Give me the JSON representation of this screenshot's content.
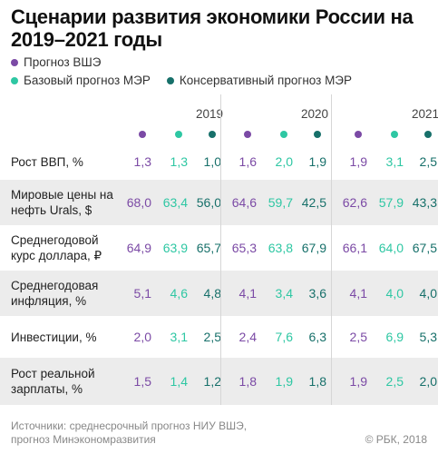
{
  "title": "Сценарии развития экономики России на 2019–2021 годы",
  "colors": {
    "vshe": "#7b4aa5",
    "base": "#2ec7a3",
    "cons": "#17706a"
  },
  "legend": [
    {
      "key": "vshe",
      "label": "Прогноз ВШЭ"
    },
    {
      "key": "base",
      "label": "Базовый прогноз МЭР"
    },
    {
      "key": "cons",
      "label": "Консервативный прогноз МЭР"
    }
  ],
  "chart_data": {
    "type": "table",
    "years": [
      "2019",
      "2020",
      "2021"
    ],
    "series": [
      "vshe",
      "base",
      "cons"
    ],
    "rows": [
      {
        "label": "Рост ВВП, %",
        "values": [
          [
            "1,3",
            "1,3",
            "1,0"
          ],
          [
            "1,6",
            "2,0",
            "1,9"
          ],
          [
            "1,9",
            "3,1",
            "2,5"
          ]
        ]
      },
      {
        "label": "Мировые цены на нефть Urals, $",
        "values": [
          [
            "68,0",
            "63,4",
            "56,0"
          ],
          [
            "64,6",
            "59,7",
            "42,5"
          ],
          [
            "62,6",
            "57,9",
            "43,3"
          ]
        ]
      },
      {
        "label": "Среднегодовой курс доллара, ₽",
        "values": [
          [
            "64,9",
            "63,9",
            "65,7"
          ],
          [
            "65,3",
            "63,8",
            "67,9"
          ],
          [
            "66,1",
            "64,0",
            "67,5"
          ]
        ]
      },
      {
        "label": "Среднегодовая инфляция, %",
        "values": [
          [
            "5,1",
            "4,6",
            "4,8"
          ],
          [
            "4,1",
            "3,4",
            "3,6"
          ],
          [
            "4,1",
            "4,0",
            "4,0"
          ]
        ]
      },
      {
        "label": "Инвестиции, %",
        "values": [
          [
            "2,0",
            "3,1",
            "2,5"
          ],
          [
            "2,4",
            "7,6",
            "6,3"
          ],
          [
            "2,5",
            "6,9",
            "5,3"
          ]
        ]
      },
      {
        "label": "Рост реальной зарплаты, %",
        "values": [
          [
            "1,5",
            "1,4",
            "1,2"
          ],
          [
            "1,8",
            "1,9",
            "1,8"
          ],
          [
            "1,9",
            "2,5",
            "2,0"
          ]
        ]
      }
    ]
  },
  "footer": {
    "source": "Источники: среднесрочный прогноз НИУ ВШЭ, прогноз Минэкономразвития",
    "copyright": "© РБК, 2018"
  }
}
